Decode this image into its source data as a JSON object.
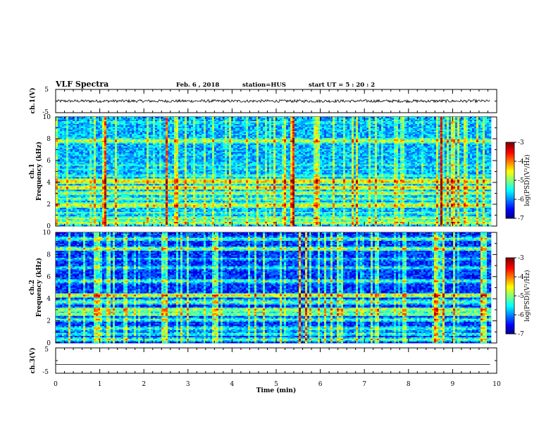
{
  "header": {
    "title": "VLF Spectra",
    "date": "Feb. 6 , 2018",
    "station": "station=HUS",
    "start_ut": "start UT = 5 : 20 : 2"
  },
  "chart_data": [
    {
      "type": "line",
      "panel": "ch1-waveform",
      "ylabel": "ch.1(V)",
      "ylim": [
        -5,
        5
      ],
      "ytick_labels": [
        "5",
        "-5"
      ],
      "xlim": [
        0,
        10
      ],
      "series": [
        {
          "values_description": null,
          "level": 0
        }
      ],
      "line_color": "#000000",
      "noise_amplitude": 0.6
    },
    {
      "type": "heatmap",
      "panel": "ch1-spectrogram",
      "ylabel": "ch.1\nFrequency (kHz)",
      "ylabel_lines": [
        "ch.1",
        "Frequency (kHz)"
      ],
      "xlim": [
        0,
        9.85
      ],
      "ylim": [
        0,
        10
      ],
      "ytick_labels": [
        "0",
        "2",
        "4",
        "6",
        "8",
        "10"
      ],
      "colorbar": {
        "label": "log(PSD)(V²/Hz)",
        "ticks": [
          "-3",
          "-4",
          "-5",
          "-6",
          "-7"
        ],
        "range": [
          -7,
          -3
        ]
      },
      "bands_khz": [
        {
          "f": 0.3,
          "level": -4.6
        },
        {
          "f": 0.7,
          "level": -4.8
        },
        {
          "f": 1.2,
          "level": -5.2
        },
        {
          "f": 1.9,
          "level": -4.4
        },
        {
          "f": 2.5,
          "level": -5.0
        },
        {
          "f": 3.0,
          "level": -4.7
        },
        {
          "f": 3.5,
          "level": -4.3
        },
        {
          "f": 4.1,
          "level": -4.2
        },
        {
          "f": 4.6,
          "level": -5.1
        },
        {
          "f": 5.2,
          "level": -5.4
        },
        {
          "f": 5.6,
          "level": -5.3
        },
        {
          "f": 6.5,
          "level": -5.6
        },
        {
          "f": 7.8,
          "level": -4.6
        },
        {
          "f": 9.5,
          "level": -5.3
        }
      ],
      "background_level": -5.8
    },
    {
      "type": "heatmap",
      "panel": "ch2-spectrogram",
      "ylabel": "ch.2\nFrequency (kHz)",
      "ylabel_lines": [
        "ch.2",
        "Frequency (kHz)"
      ],
      "xlim": [
        0,
        9.85
      ],
      "ylim": [
        0,
        10
      ],
      "ytick_labels": [
        "0",
        "2",
        "4",
        "6",
        "8",
        "10"
      ],
      "colorbar": {
        "label": "log(PSD)(V²/Hz)",
        "ticks": [
          "-3",
          "-4",
          "-5",
          "-6",
          "-7"
        ],
        "range": [
          -7,
          -3
        ]
      },
      "bands_khz": [
        {
          "f": 0.3,
          "level": -5.1
        },
        {
          "f": 0.8,
          "level": -5.3
        },
        {
          "f": 1.3,
          "level": -5.2
        },
        {
          "f": 2.1,
          "level": -5.2
        },
        {
          "f": 2.6,
          "level": -4.8
        },
        {
          "f": 3.0,
          "level": -4.7
        },
        {
          "f": 3.7,
          "level": -5.0
        },
        {
          "f": 4.3,
          "level": -4.5
        },
        {
          "f": 5.6,
          "level": -5.2
        },
        {
          "f": 6.8,
          "level": -5.4
        },
        {
          "f": 7.6,
          "level": -5.6
        },
        {
          "f": 8.5,
          "level": -4.9
        },
        {
          "f": 9.4,
          "level": -5.2
        }
      ],
      "background_level": -6.3
    },
    {
      "type": "line",
      "panel": "ch3-waveform",
      "ylabel": "ch.3(V)",
      "ylim": [
        -5,
        5
      ],
      "ytick_labels": [
        "5",
        "-5"
      ],
      "xlim": [
        0,
        10
      ],
      "series": [
        {
          "level": -1.5
        }
      ],
      "line_color": "#000000",
      "noise_amplitude": 0
    }
  ],
  "xaxis": {
    "label": "Time (min)",
    "ticks": [
      0,
      1,
      2,
      3,
      4,
      5,
      6,
      7,
      8,
      9,
      10
    ],
    "tick_labels": [
      "0",
      "1",
      "2",
      "3",
      "4",
      "5",
      "6",
      "7",
      "8",
      "9",
      "10"
    ],
    "range": [
      0,
      10
    ]
  }
}
